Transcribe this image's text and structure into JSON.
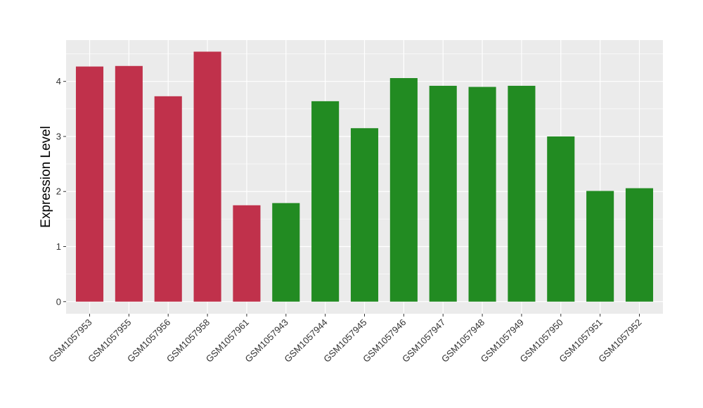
{
  "chart_data": {
    "type": "bar",
    "ylabel": "Expression Level",
    "xlabel": "",
    "categories": [
      "GSM1057953",
      "GSM1057955",
      "GSM1057956",
      "GSM1057958",
      "GSM1057961",
      "GSM1057943",
      "GSM1057944",
      "GSM1057945",
      "GSM1057946",
      "GSM1057947",
      "GSM1057948",
      "GSM1057949",
      "GSM1057950",
      "GSM1057951",
      "GSM1057952"
    ],
    "values": [
      4.27,
      4.28,
      3.73,
      4.54,
      1.75,
      1.79,
      3.64,
      3.15,
      4.06,
      3.92,
      3.9,
      3.92,
      3.0,
      2.01,
      2.06
    ],
    "groups": [
      "A",
      "A",
      "A",
      "A",
      "A",
      "B",
      "B",
      "B",
      "B",
      "B",
      "B",
      "B",
      "B",
      "B",
      "B"
    ],
    "group_colors": {
      "A": "#C0314B",
      "B": "#228B22"
    },
    "yticks": [
      0,
      1,
      2,
      3,
      4
    ],
    "ylim": [
      -0.22,
      4.75
    ],
    "grid": true,
    "legend": "none",
    "panel_background": "#EBEBEB",
    "gridline_color": "#FFFFFF"
  }
}
